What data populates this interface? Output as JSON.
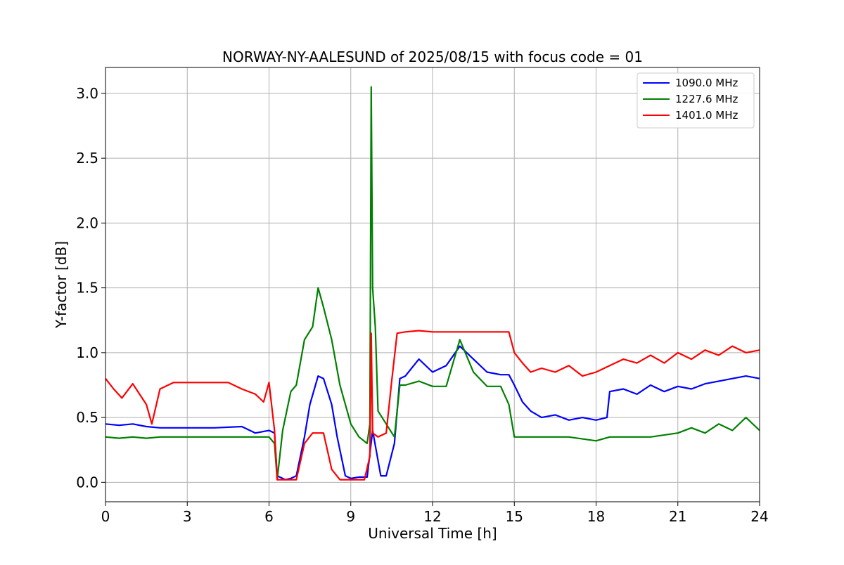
{
  "chart_data": {
    "type": "line",
    "title": "NORWAY-NY-AALESUND of 2025/08/15 with focus code = 01",
    "xlabel": "Universal Time [h]",
    "ylabel": "Y-factor [dB]",
    "xlim": [
      0,
      24
    ],
    "ylim": [
      -0.15,
      3.2
    ],
    "xticks": [
      0,
      3,
      6,
      9,
      12,
      15,
      18,
      21,
      24
    ],
    "yticks": [
      0.0,
      0.5,
      1.0,
      1.5,
      2.0,
      2.5,
      3.0
    ],
    "xtick_labels": [
      "0",
      "3",
      "6",
      "9",
      "12",
      "15",
      "18",
      "21",
      "24"
    ],
    "ytick_labels": [
      "0.0",
      "0.5",
      "1.0",
      "1.5",
      "2.0",
      "2.5",
      "3.0"
    ],
    "grid": true,
    "legend_position": "top-right",
    "series": [
      {
        "name": "1090.0 MHz",
        "color": "#0000ff",
        "x": [
          0,
          0.5,
          1.0,
          1.5,
          2.0,
          3.0,
          4.0,
          5.0,
          5.5,
          6.0,
          6.2,
          6.3,
          6.6,
          6.8,
          7.0,
          7.3,
          7.5,
          7.8,
          8.0,
          8.3,
          8.5,
          8.8,
          9.0,
          9.3,
          9.6,
          9.8,
          10.1,
          10.3,
          10.6,
          10.8,
          11.0,
          11.5,
          12.0,
          12.5,
          13.0,
          13.5,
          14.0,
          14.5,
          14.8,
          15.0,
          15.3,
          15.6,
          16.0,
          16.5,
          17.0,
          17.5,
          18.0,
          18.4,
          18.5,
          19.0,
          19.5,
          20.0,
          20.5,
          21.0,
          21.5,
          22.0,
          22.5,
          23.0,
          23.5,
          24.0
        ],
        "y": [
          0.45,
          0.44,
          0.45,
          0.43,
          0.42,
          0.42,
          0.42,
          0.43,
          0.38,
          0.4,
          0.38,
          0.05,
          0.02,
          0.03,
          0.05,
          0.35,
          0.6,
          0.82,
          0.8,
          0.6,
          0.35,
          0.05,
          0.03,
          0.04,
          0.04,
          0.4,
          0.05,
          0.05,
          0.3,
          0.8,
          0.82,
          0.95,
          0.85,
          0.9,
          1.05,
          0.95,
          0.85,
          0.83,
          0.83,
          0.75,
          0.62,
          0.55,
          0.5,
          0.52,
          0.48,
          0.5,
          0.48,
          0.5,
          0.7,
          0.72,
          0.68,
          0.75,
          0.7,
          0.74,
          0.72,
          0.76,
          0.78,
          0.8,
          0.82,
          0.8
        ]
      },
      {
        "name": "1227.6 MHz",
        "color": "#008000",
        "x": [
          0,
          0.5,
          1.0,
          1.5,
          2.0,
          3.0,
          4.0,
          5.0,
          5.5,
          6.0,
          6.2,
          6.3,
          6.5,
          6.8,
          7.0,
          7.3,
          7.6,
          7.8,
          8.0,
          8.3,
          8.6,
          9.0,
          9.3,
          9.6,
          9.7,
          9.75,
          9.8,
          9.9,
          10.0,
          10.3,
          10.6,
          10.8,
          11.0,
          11.5,
          12.0,
          12.5,
          13.0,
          13.5,
          14.0,
          14.5,
          14.8,
          15.0,
          15.5,
          16.0,
          17.0,
          18.0,
          18.5,
          19.0,
          20.0,
          21.0,
          21.5,
          22.0,
          22.5,
          23.0,
          23.5,
          24.0
        ],
        "y": [
          0.35,
          0.34,
          0.35,
          0.34,
          0.35,
          0.35,
          0.35,
          0.35,
          0.35,
          0.35,
          0.3,
          0.02,
          0.4,
          0.7,
          0.75,
          1.1,
          1.2,
          1.5,
          1.35,
          1.1,
          0.75,
          0.45,
          0.35,
          0.3,
          0.45,
          3.05,
          1.5,
          1.2,
          0.55,
          0.45,
          0.35,
          0.75,
          0.75,
          0.78,
          0.74,
          0.74,
          1.1,
          0.85,
          0.74,
          0.74,
          0.6,
          0.35,
          0.35,
          0.35,
          0.35,
          0.32,
          0.35,
          0.35,
          0.35,
          0.38,
          0.42,
          0.38,
          0.45,
          0.4,
          0.5,
          0.4
        ]
      },
      {
        "name": "1401.0 MHz",
        "color": "#ff0000",
        "x": [
          0,
          0.3,
          0.6,
          1.0,
          1.5,
          1.7,
          2.0,
          2.5,
          3.0,
          3.5,
          4.0,
          4.5,
          5.0,
          5.5,
          5.8,
          6.0,
          6.2,
          6.3,
          6.6,
          7.0,
          7.3,
          7.6,
          8.0,
          8.3,
          8.6,
          9.0,
          9.5,
          9.7,
          9.75,
          9.8,
          10.0,
          10.3,
          10.5,
          10.7,
          11.0,
          11.5,
          12.0,
          13.0,
          14.0,
          14.8,
          15.0,
          15.3,
          15.6,
          16.0,
          16.5,
          17.0,
          17.5,
          18.0,
          18.5,
          19.0,
          19.5,
          20.0,
          20.5,
          21.0,
          21.5,
          22.0,
          22.5,
          23.0,
          23.5,
          24.0
        ],
        "y": [
          0.8,
          0.72,
          0.65,
          0.76,
          0.6,
          0.45,
          0.72,
          0.77,
          0.77,
          0.77,
          0.77,
          0.77,
          0.72,
          0.68,
          0.62,
          0.77,
          0.4,
          0.02,
          0.02,
          0.02,
          0.3,
          0.38,
          0.38,
          0.1,
          0.02,
          0.02,
          0.02,
          0.2,
          1.15,
          0.38,
          0.35,
          0.38,
          0.78,
          1.15,
          1.16,
          1.17,
          1.16,
          1.16,
          1.16,
          1.16,
          1.0,
          0.92,
          0.85,
          0.88,
          0.85,
          0.9,
          0.82,
          0.85,
          0.9,
          0.95,
          0.92,
          0.98,
          0.92,
          1.0,
          0.95,
          1.02,
          0.98,
          1.05,
          1.0,
          1.02
        ]
      }
    ]
  }
}
